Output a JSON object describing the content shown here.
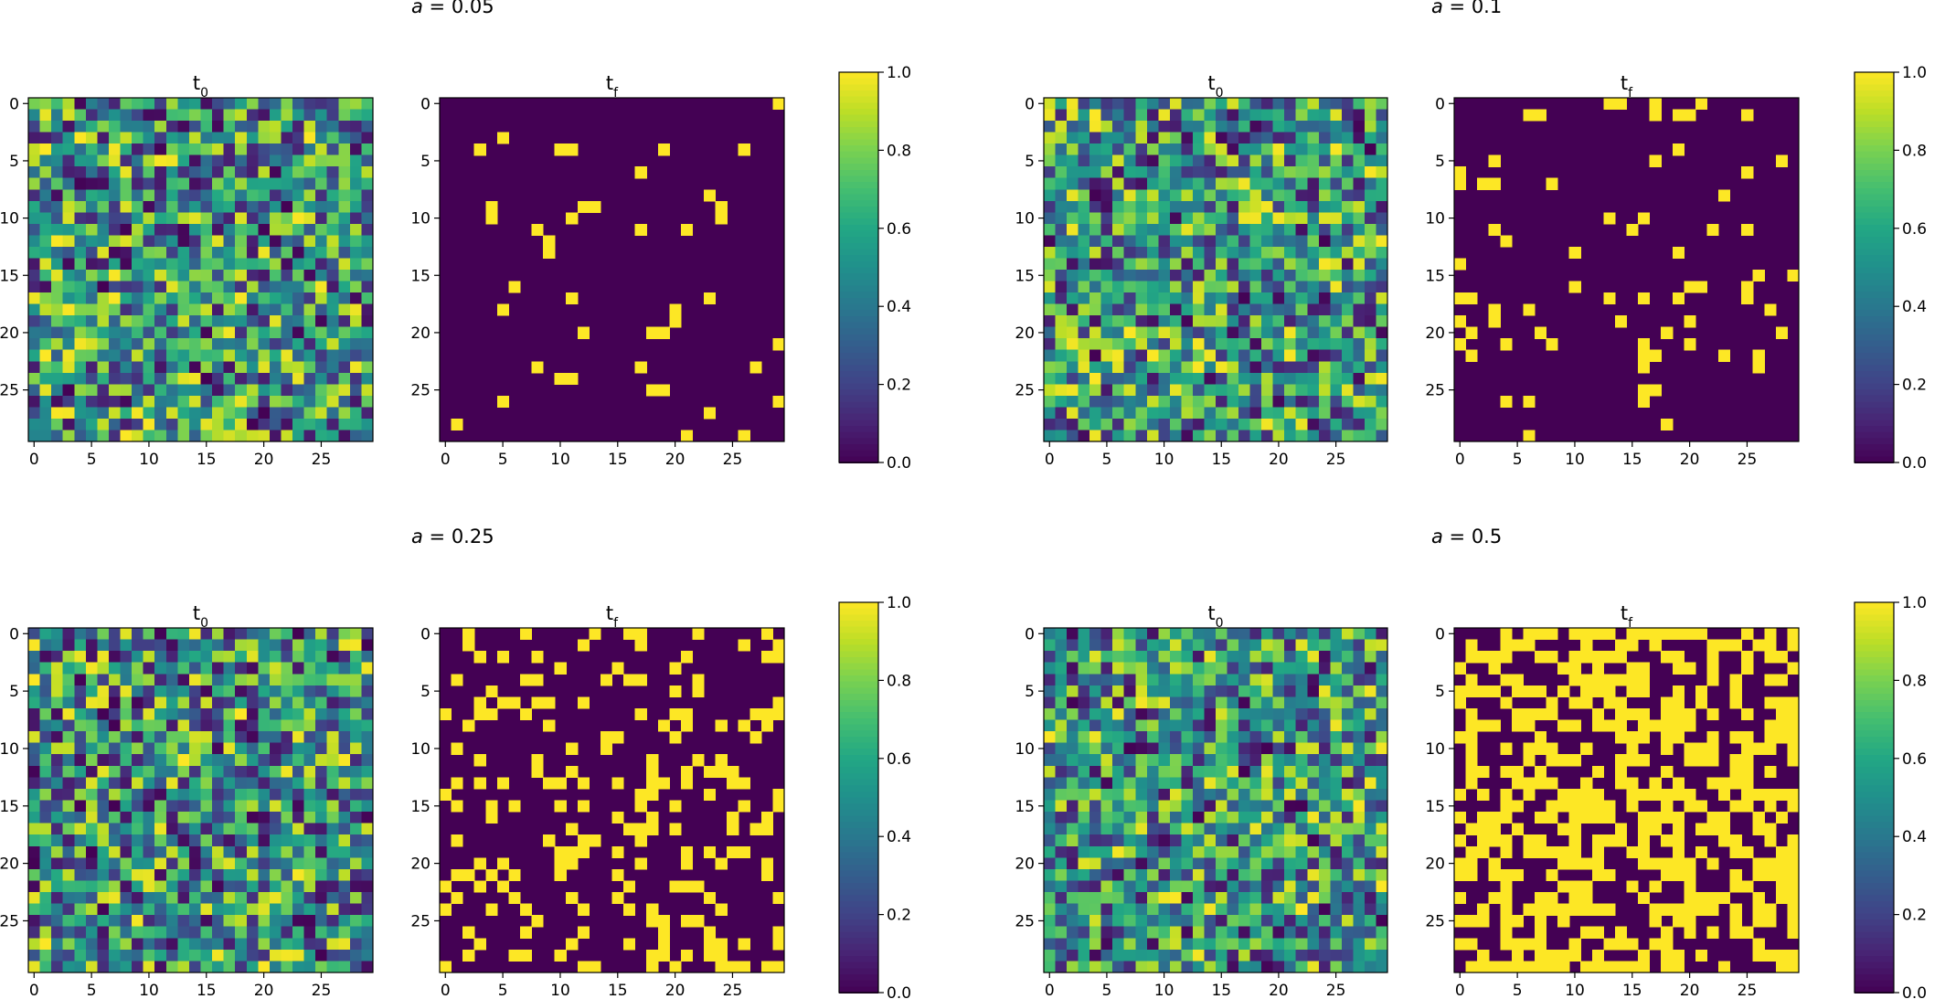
{
  "chart_data": [
    {
      "type": "heatmap",
      "group_title": "a = 0.05",
      "panels": [
        {
          "title": "t0",
          "kind": "random_uniform"
        },
        {
          "title": "tf",
          "kind": "binary"
        }
      ],
      "grid_size": [
        30,
        30
      ],
      "x_ticks": [
        "0",
        "5",
        "10",
        "15",
        "20",
        "25"
      ],
      "y_ticks": [
        "0",
        "5",
        "10",
        "15",
        "20",
        "25"
      ],
      "colorbar": {
        "colormap": "viridis",
        "range": [
          0.0,
          1.0
        ],
        "ticks": [
          "0.0",
          "0.2",
          "0.4",
          "0.6",
          "0.8",
          "1.0"
        ]
      },
      "tf_ones": [
        [
          0,
          29
        ],
        [
          3,
          5
        ],
        [
          4,
          3
        ],
        [
          4,
          10
        ],
        [
          4,
          11
        ],
        [
          4,
          19
        ],
        [
          4,
          26
        ],
        [
          6,
          17
        ],
        [
          8,
          23
        ],
        [
          9,
          4
        ],
        [
          9,
          12
        ],
        [
          9,
          13
        ],
        [
          9,
          24
        ],
        [
          10,
          4
        ],
        [
          10,
          11
        ],
        [
          10,
          24
        ],
        [
          11,
          8
        ],
        [
          11,
          17
        ],
        [
          11,
          21
        ],
        [
          12,
          9
        ],
        [
          13,
          9
        ],
        [
          16,
          6
        ],
        [
          17,
          11
        ],
        [
          17,
          23
        ],
        [
          18,
          5
        ],
        [
          18,
          20
        ],
        [
          19,
          20
        ],
        [
          20,
          12
        ],
        [
          20,
          18
        ],
        [
          20,
          19
        ],
        [
          21,
          29
        ],
        [
          23,
          8
        ],
        [
          23,
          17
        ],
        [
          23,
          27
        ],
        [
          24,
          10
        ],
        [
          24,
          11
        ],
        [
          25,
          18
        ],
        [
          25,
          19
        ],
        [
          26,
          5
        ],
        [
          26,
          29
        ],
        [
          27,
          23
        ],
        [
          28,
          1
        ],
        [
          29,
          21
        ],
        [
          29,
          26
        ]
      ]
    },
    {
      "type": "heatmap",
      "group_title": "a = 0.1",
      "panels": [
        {
          "title": "t0",
          "kind": "random_uniform"
        },
        {
          "title": "tf",
          "kind": "binary"
        }
      ],
      "grid_size": [
        30,
        30
      ],
      "x_ticks": [
        "0",
        "5",
        "10",
        "15",
        "20",
        "25"
      ],
      "y_ticks": [
        "0",
        "5",
        "10",
        "15",
        "20",
        "25"
      ],
      "colorbar": {
        "colormap": "viridis",
        "range": [
          0.0,
          1.0
        ],
        "ticks": [
          "0.0",
          "0.2",
          "0.4",
          "0.6",
          "0.8",
          "1.0"
        ]
      },
      "tf_ones": [
        [
          0,
          13
        ],
        [
          0,
          14
        ],
        [
          0,
          17
        ],
        [
          0,
          21
        ],
        [
          1,
          6
        ],
        [
          1,
          7
        ],
        [
          1,
          17
        ],
        [
          1,
          19
        ],
        [
          1,
          20
        ],
        [
          1,
          25
        ],
        [
          4,
          19
        ],
        [
          5,
          3
        ],
        [
          5,
          17
        ],
        [
          5,
          28
        ],
        [
          6,
          0
        ],
        [
          6,
          25
        ],
        [
          7,
          0
        ],
        [
          7,
          2
        ],
        [
          7,
          3
        ],
        [
          7,
          8
        ],
        [
          8,
          23
        ],
        [
          10,
          13
        ],
        [
          10,
          16
        ],
        [
          11,
          3
        ],
        [
          11,
          15
        ],
        [
          11,
          22
        ],
        [
          11,
          25
        ],
        [
          12,
          4
        ],
        [
          13,
          10
        ],
        [
          13,
          19
        ],
        [
          14,
          0
        ],
        [
          15,
          26
        ],
        [
          15,
          29
        ],
        [
          16,
          10
        ],
        [
          16,
          20
        ],
        [
          16,
          21
        ],
        [
          16,
          25
        ],
        [
          17,
          0
        ],
        [
          17,
          1
        ],
        [
          17,
          13
        ],
        [
          17,
          16
        ],
        [
          17,
          19
        ],
        [
          17,
          25
        ],
        [
          18,
          3
        ],
        [
          18,
          6
        ],
        [
          18,
          27
        ],
        [
          19,
          0
        ],
        [
          19,
          3
        ],
        [
          19,
          14
        ],
        [
          19,
          20
        ],
        [
          20,
          1
        ],
        [
          20,
          7
        ],
        [
          20,
          18
        ],
        [
          20,
          28
        ],
        [
          21,
          0
        ],
        [
          21,
          4
        ],
        [
          21,
          8
        ],
        [
          21,
          16
        ],
        [
          21,
          20
        ],
        [
          22,
          1
        ],
        [
          22,
          16
        ],
        [
          22,
          17
        ],
        [
          22,
          23
        ],
        [
          22,
          26
        ],
        [
          23,
          16
        ],
        [
          23,
          26
        ],
        [
          25,
          16
        ],
        [
          25,
          17
        ],
        [
          26,
          4
        ],
        [
          26,
          6
        ],
        [
          26,
          16
        ],
        [
          28,
          18
        ],
        [
          29,
          6
        ]
      ]
    },
    {
      "type": "heatmap",
      "group_title": "a = 0.25",
      "panels": [
        {
          "title": "t0",
          "kind": "random_uniform"
        },
        {
          "title": "tf",
          "kind": "binary"
        }
      ],
      "grid_size": [
        30,
        30
      ],
      "x_ticks": [
        "0",
        "5",
        "10",
        "15",
        "20",
        "25"
      ],
      "y_ticks": [
        "0",
        "5",
        "10",
        "15",
        "20",
        "25"
      ],
      "colorbar": {
        "colormap": "viridis",
        "range": [
          0.0,
          1.0
        ],
        "ticks": [
          "0.0",
          "0.2",
          "0.4",
          "0.6",
          "0.8",
          "1.0"
        ]
      },
      "tf_ones_density": 0.22
    },
    {
      "type": "heatmap",
      "group_title": "a = 0.5",
      "panels": [
        {
          "title": "t0",
          "kind": "random_uniform"
        },
        {
          "title": "tf",
          "kind": "binary"
        }
      ],
      "grid_size": [
        30,
        30
      ],
      "x_ticks": [
        "0",
        "5",
        "10",
        "15",
        "20",
        "25"
      ],
      "y_ticks": [
        "0",
        "5",
        "10",
        "15",
        "20",
        "25"
      ],
      "colorbar": {
        "colormap": "viridis",
        "range": [
          0.0,
          1.0
        ],
        "ticks": [
          "0.0",
          "0.2",
          "0.4",
          "0.6",
          "0.8",
          "1.0"
        ]
      },
      "tf_ones_density": 0.5
    }
  ]
}
